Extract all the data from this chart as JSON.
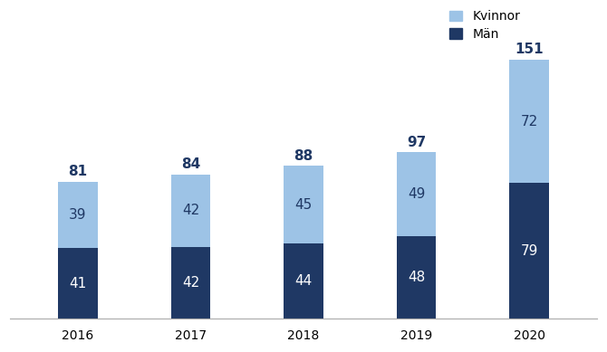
{
  "years": [
    "2016",
    "2017",
    "2018",
    "2019",
    "2020"
  ],
  "man_values": [
    41,
    42,
    44,
    48,
    79
  ],
  "kvinnor_values": [
    39,
    42,
    45,
    49,
    72
  ],
  "totals": [
    81,
    84,
    88,
    97,
    151
  ],
  "man_color": "#1F3864",
  "kvinnor_color": "#9DC3E6",
  "man_label": "Män",
  "kvinnor_label": "Kvinnor",
  "background_color": "#ffffff",
  "bar_width": 0.35,
  "ylim": [
    0,
    180
  ],
  "legend_fontsize": 10,
  "label_fontsize_inner": 11,
  "label_fontsize_total": 11,
  "tick_fontsize": 10,
  "man_text_color": "#ffffff",
  "kvinnor_text_color": "#1F3864",
  "total_text_color": "#1F3864"
}
